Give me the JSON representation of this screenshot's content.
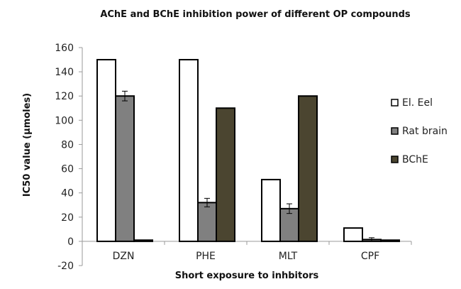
{
  "chart_data": {
    "type": "bar",
    "title": "AChE and BChE inhibition power of different OP compounds",
    "xlabel": "Short exposure to inhbitors",
    "ylabel": "IC50 value (µmoles)",
    "ylim": [
      -20,
      160
    ],
    "yticks": [
      -20,
      0,
      20,
      40,
      60,
      80,
      100,
      120,
      140,
      160
    ],
    "grid": false,
    "legend_position": "right",
    "categories": [
      "DZN",
      "PHE",
      "MLT",
      "CPF"
    ],
    "series": [
      {
        "name": "El. Eel",
        "color": "#ffffff",
        "values": [
          150,
          150,
          51,
          11
        ],
        "errors": [
          null,
          null,
          null,
          null
        ]
      },
      {
        "name": "Rat brain",
        "color": "#808080",
        "values": [
          120,
          32,
          27,
          1.5
        ],
        "errors": [
          4,
          3.5,
          4,
          1.5
        ]
      },
      {
        "name": "BChE",
        "color": "#4b4530",
        "values": [
          1,
          110,
          120,
          1
        ],
        "errors": [
          null,
          null,
          null,
          null
        ]
      }
    ]
  }
}
